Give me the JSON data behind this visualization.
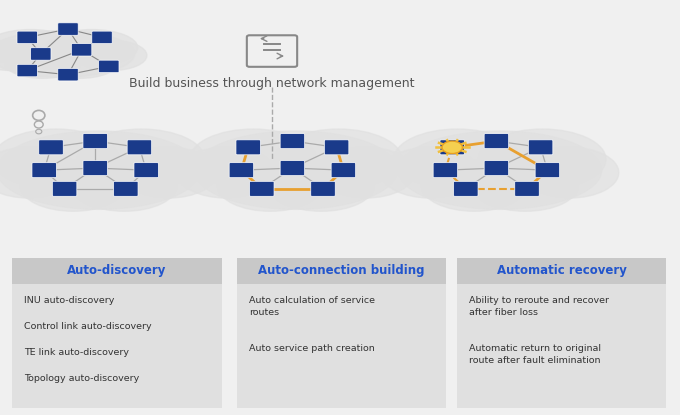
{
  "bg_color": "#f0f0f0",
  "title_text": "Build business through network management",
  "title_color": "#555555",
  "title_fontsize": 9,
  "box_titles": [
    "Auto-discovery",
    "Auto-connection building",
    "Automatic recovery"
  ],
  "box_title_color": "#2255cc",
  "box_bg": "#d8d8d8",
  "box_text_bg": "#e8e8e8",
  "box_items": [
    [
      "INU auto-discovery",
      "Control link auto-discovery",
      "TE link auto-discovery",
      "Topology auto-discovery"
    ],
    [
      "Auto calculation of service\nroutes",
      "Auto service path creation"
    ],
    [
      "Ability to reroute and recover\nafter fiber loss",
      "Automatic return to original\nroute after fault elimination"
    ]
  ],
  "box_text_color": "#333333",
  "node_color": "#1a3a8a",
  "link_color": "#aaaaaa",
  "orange_color": "#e8a030",
  "cloud_color": "#e0e0e0"
}
